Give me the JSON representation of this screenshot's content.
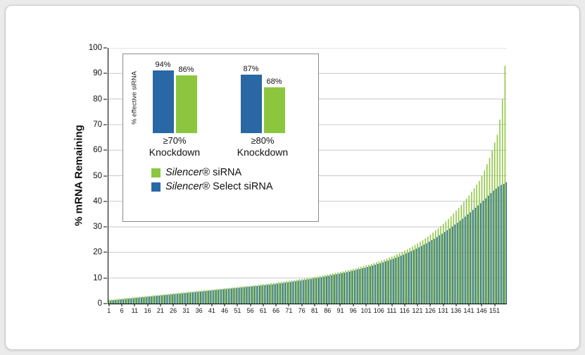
{
  "colors": {
    "green": "#8CC63F",
    "blue": "#2A67A5",
    "grid": "#c9c9c9"
  },
  "legend": {
    "items": [
      {
        "italic": "Silencer",
        "rest": "® siRNA",
        "color": "green"
      },
      {
        "italic": "Silencer",
        "rest": "® Select siRNA",
        "color": "blue"
      }
    ]
  },
  "chart_data": [
    {
      "type": "bar",
      "title": "",
      "xlabel": "",
      "ylabel": "% mRNA Remaining",
      "ylim": [
        0,
        100
      ],
      "grid": "horizontal",
      "yticks": [
        0,
        10,
        20,
        30,
        40,
        50,
        60,
        70,
        80,
        90,
        100
      ],
      "xtick_labels": [
        1,
        6,
        11,
        16,
        21,
        26,
        31,
        36,
        41,
        46,
        51,
        56,
        61,
        66,
        71,
        76,
        81,
        86,
        91,
        96,
        101,
        106,
        111,
        116,
        121,
        126,
        131,
        136,
        141,
        146,
        151
      ],
      "series": [
        {
          "name": "Silencer® siRNA",
          "color": "#8CC63F",
          "values": [
            1.5,
            1.6,
            1.7,
            1.8,
            1.9,
            2,
            2.1,
            2.2,
            2.3,
            2.4,
            2.5,
            2.6,
            2.7,
            2.8,
            2.9,
            3,
            3.1,
            3.2,
            3.3,
            3.4,
            3.5,
            3.6,
            3.7,
            3.8,
            3.9,
            4,
            4.1,
            4.2,
            4.3,
            4.4,
            4.5,
            4.6,
            4.7,
            4.8,
            4.9,
            5,
            5.1,
            5.2,
            5.3,
            5.4,
            5.5,
            5.6,
            5.7,
            5.8,
            5.9,
            6,
            6.1,
            6.2,
            6.3,
            6.4,
            6.5,
            6.6,
            6.7,
            6.8,
            6.9,
            7,
            7.1,
            7.2,
            7.3,
            7.5,
            7.6,
            7.7,
            7.8,
            8,
            8.1,
            8.2,
            8.4,
            8.5,
            8.6,
            8.8,
            8.9,
            9,
            9.2,
            9.3,
            9.5,
            9.6,
            9.8,
            10,
            10.1,
            10.3,
            10.5,
            10.6,
            10.8,
            11,
            11.2,
            11.4,
            11.6,
            11.8,
            12,
            12.2,
            12.4,
            12.6,
            12.9,
            13.1,
            13.3,
            13.6,
            13.8,
            14.1,
            14.4,
            14.6,
            14.9,
            15.2,
            15.5,
            15.8,
            16.2,
            16.5,
            16.9,
            17.2,
            17.6,
            18,
            18.4,
            18.8,
            19.3,
            19.7,
            20.2,
            20.7,
            21.2,
            21.8,
            22.3,
            22.9,
            23.5,
            24.2,
            24.8,
            25.5,
            26.2,
            27,
            27.8,
            28.6,
            29.4,
            30.3,
            31.2,
            32.1,
            33.1,
            34.1,
            35.2,
            36.3,
            37.4,
            38.6,
            39.8,
            41,
            42.3,
            43.7,
            45.1,
            46.5,
            48,
            50,
            52,
            54.5,
            57,
            60,
            63,
            66,
            72,
            80,
            93
          ]
        },
        {
          "name": "Silencer® Select siRNA",
          "color": "#2A67A5",
          "values": [
            1.2,
            1.3,
            1.4,
            1.5,
            1.6,
            1.7,
            1.8,
            1.9,
            2,
            2.1,
            2.2,
            2.3,
            2.4,
            2.5,
            2.6,
            2.7,
            2.8,
            2.9,
            3,
            3.1,
            3.2,
            3.3,
            3.4,
            3.5,
            3.6,
            3.7,
            3.8,
            3.9,
            4,
            4.1,
            4.2,
            4.3,
            4.4,
            4.5,
            4.6,
            4.7,
            4.8,
            4.9,
            5,
            5.1,
            5.2,
            5.3,
            5.4,
            5.5,
            5.6,
            5.7,
            5.8,
            5.9,
            6,
            6.1,
            6.2,
            6.3,
            6.4,
            6.5,
            6.6,
            6.7,
            6.8,
            6.9,
            7,
            7.1,
            7.2,
            7.3,
            7.4,
            7.5,
            7.6,
            7.8,
            7.9,
            8,
            8.2,
            8.3,
            8.4,
            8.6,
            8.7,
            8.9,
            9,
            9.2,
            9.3,
            9.5,
            9.6,
            9.8,
            10,
            10.1,
            10.3,
            10.5,
            10.7,
            10.9,
            11.1,
            11.3,
            11.5,
            11.7,
            11.9,
            12.1,
            12.3,
            12.5,
            12.8,
            13,
            13.3,
            13.5,
            13.8,
            14,
            14.3,
            14.6,
            14.9,
            15.2,
            15.5,
            15.8,
            16.1,
            16.5,
            16.8,
            17.2,
            17.5,
            17.9,
            18.3,
            18.7,
            19.1,
            19.6,
            20,
            20.5,
            21,
            21.5,
            22,
            22.5,
            23.1,
            23.6,
            24.2,
            24.8,
            25.4,
            26,
            26.7,
            27.3,
            28,
            28.7,
            29.4,
            30.1,
            30.9,
            31.6,
            32.4,
            33.2,
            34,
            34.9,
            35.7,
            36.6,
            37.5,
            38.4,
            39.3,
            40.2,
            41.2,
            42.2,
            43.2,
            44.2,
            45,
            45.8,
            46.4,
            46.8,
            47.5
          ]
        }
      ]
    },
    {
      "type": "bar",
      "title": "",
      "ylabel": "% effective siRNA",
      "ylim": [
        0,
        100
      ],
      "categories": [
        "≥70% Knockdown",
        "≥80% Knockdown"
      ],
      "group_label_lines": [
        [
          "≥70%",
          "Knockdown"
        ],
        [
          "≥80%",
          "Knockdown"
        ]
      ],
      "series": [
        {
          "name": "Silencer® Select siRNA",
          "color": "#2A67A5",
          "values": [
            94,
            87
          ]
        },
        {
          "name": "Silencer® siRNA",
          "color": "#8CC63F",
          "values": [
            86,
            68
          ]
        }
      ],
      "value_labels": [
        [
          "94%",
          "87%"
        ],
        [
          "86%",
          "68%"
        ]
      ]
    }
  ]
}
